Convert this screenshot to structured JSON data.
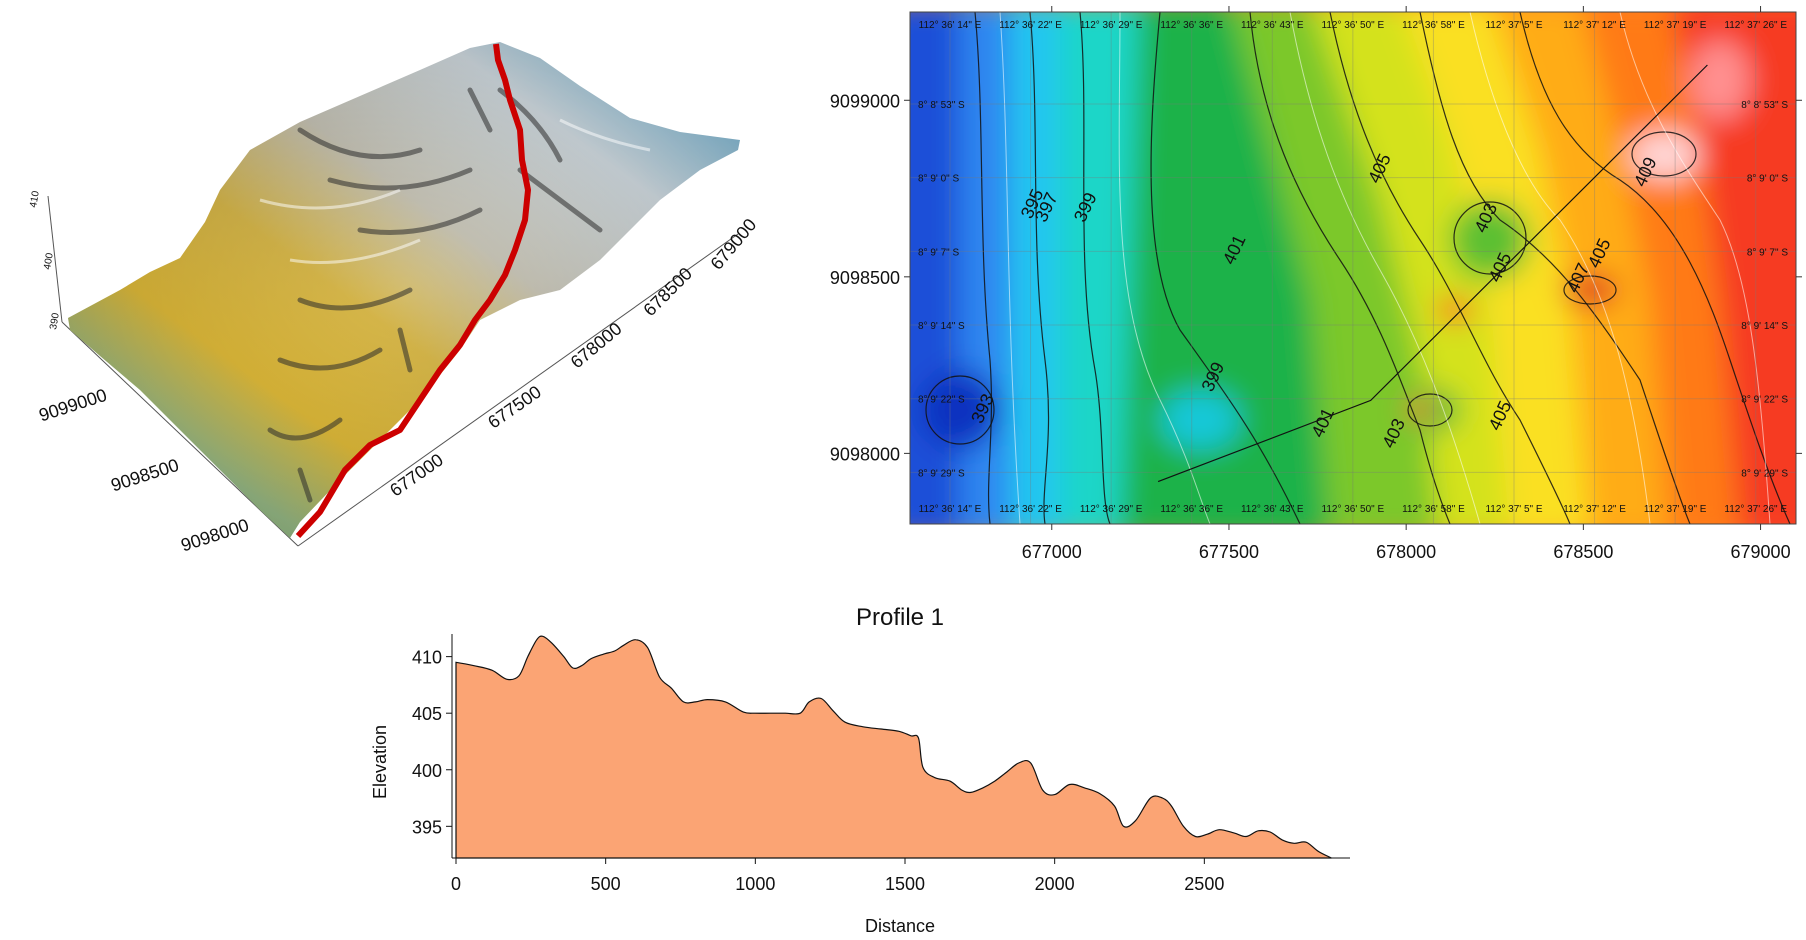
{
  "chart_data": [
    {
      "type": "area",
      "name": "surface-3d",
      "x_ticks": [
        "677000",
        "677500",
        "678000",
        "678500",
        "679000"
      ],
      "y_ticks": [
        "9098000",
        "9098500",
        "9099000"
      ],
      "z_ticks": [
        "390",
        "400",
        "410"
      ],
      "profile_color": "#cc0000"
    },
    {
      "type": "heatmap",
      "name": "contour-map",
      "xlim": [
        676600,
        679100
      ],
      "ylim": [
        9097800,
        9099250
      ],
      "x_ticks": [
        677000,
        677500,
        678000,
        678500,
        679000
      ],
      "y_ticks": [
        9098000,
        9098500,
        9099000
      ],
      "top_lon_labels": [
        "112° 36' 14\" E",
        "112° 36' 22\" E",
        "112° 36' 29\" E",
        "112° 36' 36\" E",
        "112° 36' 43\" E",
        "112° 36' 50\" E",
        "112° 36' 58\" E",
        "112° 37' 5\" E",
        "112° 37' 12\" E",
        "112° 37' 19\" E",
        "112° 37' 26\" E"
      ],
      "left_lat_labels": [
        "8° 8' 53\" S",
        "8° 9' 0\" S",
        "8° 9' 7\" S",
        "8° 9' 14\" S",
        "8° 9' 22\" S",
        "8° 9' 29\" S"
      ],
      "contour_labels": [
        {
          "text": "395",
          "x": 676960,
          "y": 9098700
        },
        {
          "text": "397",
          "x": 677000,
          "y": 9098690
        },
        {
          "text": "399",
          "x": 677110,
          "y": 9098690
        },
        {
          "text": "401",
          "x": 677530,
          "y": 9098570
        },
        {
          "text": "405",
          "x": 677940,
          "y": 9098800
        },
        {
          "text": "403",
          "x": 678240,
          "y": 9098660
        },
        {
          "text": "405",
          "x": 678280,
          "y": 9098520
        },
        {
          "text": "407",
          "x": 678500,
          "y": 9098490
        },
        {
          "text": "405",
          "x": 678560,
          "y": 9098560
        },
        {
          "text": "409",
          "x": 678690,
          "y": 9098790
        },
        {
          "text": "399",
          "x": 677470,
          "y": 9098210
        },
        {
          "text": "393",
          "x": 676820,
          "y": 9098120
        },
        {
          "text": "401",
          "x": 677780,
          "y": 9098080
        },
        {
          "text": "403",
          "x": 677980,
          "y": 9098050
        },
        {
          "text": "405",
          "x": 678280,
          "y": 9098100
        }
      ],
      "profile_line": [
        [
          677300,
          9097920
        ],
        [
          677900,
          9098150
        ],
        [
          678850,
          9099100
        ]
      ]
    },
    {
      "type": "area",
      "name": "profile-1",
      "title": "Profile 1",
      "xlabel": "Distance",
      "ylabel": "Elevation",
      "xlim": [
        0,
        3000
      ],
      "ylim": [
        392.2,
        412
      ],
      "x_ticks": [
        0,
        500,
        1000,
        1500,
        2000,
        2500
      ],
      "y_ticks": [
        395,
        400,
        405,
        410
      ],
      "fill": "#fba474",
      "x": [
        0,
        60,
        120,
        170,
        210,
        240,
        270,
        290,
        320,
        360,
        390,
        420,
        450,
        490,
        530,
        560,
        600,
        640,
        680,
        720,
        760,
        800,
        840,
        900,
        960,
        1000,
        1050,
        1100,
        1150,
        1180,
        1220,
        1260,
        1300,
        1360,
        1420,
        1480,
        1520,
        1545,
        1560,
        1600,
        1650,
        1690,
        1720,
        1760,
        1800,
        1840,
        1880,
        1920,
        1960,
        2000,
        2050,
        2100,
        2150,
        2200,
        2230,
        2270,
        2320,
        2360,
        2390,
        2430,
        2470,
        2510,
        2550,
        2600,
        2640,
        2680,
        2720,
        2760,
        2800,
        2840,
        2880,
        2925
      ],
      "y": [
        409.5,
        409.2,
        408.8,
        408.0,
        408.3,
        410.0,
        411.5,
        411.8,
        411.2,
        410.0,
        409.0,
        409.2,
        409.8,
        410.2,
        410.5,
        411.0,
        411.5,
        410.8,
        408.2,
        407.2,
        406.0,
        406.0,
        406.2,
        406.0,
        405.1,
        405.0,
        405.0,
        405.0,
        405.0,
        406.0,
        406.3,
        405.2,
        404.2,
        403.8,
        403.6,
        403.4,
        403.0,
        402.8,
        400.2,
        399.3,
        399.0,
        398.2,
        398.0,
        398.4,
        399.0,
        399.8,
        400.6,
        400.6,
        398.2,
        397.8,
        398.7,
        398.4,
        397.9,
        396.8,
        395.0,
        395.5,
        397.5,
        397.5,
        396.8,
        395.0,
        394.1,
        394.3,
        394.7,
        394.4,
        394.1,
        394.6,
        394.5,
        393.8,
        393.5,
        393.6,
        392.8,
        392.2
      ]
    }
  ]
}
